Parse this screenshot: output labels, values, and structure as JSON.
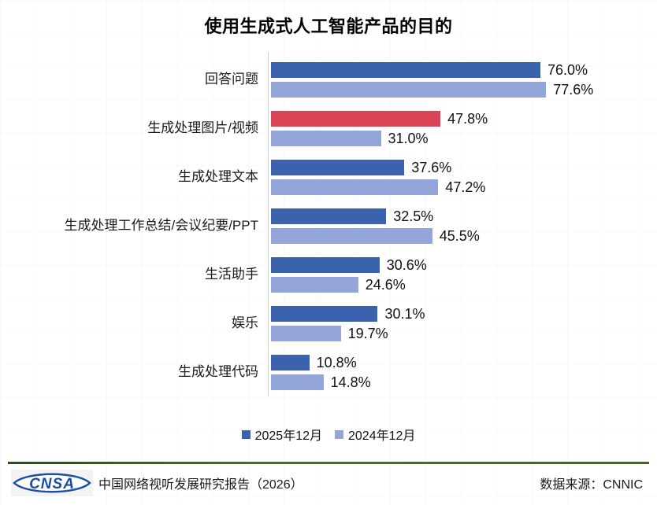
{
  "title": "使用生成式人工智能产品的目的",
  "chart_data": {
    "type": "bar",
    "orientation": "horizontal",
    "categories": [
      "回答问题",
      "生成处理图片/视频",
      "生成处理文本",
      "生成处理工作总结/会议纪要/PPT",
      "生活助手",
      "娱乐",
      "生成处理代码"
    ],
    "series": [
      {
        "name": "2025年12月",
        "color": "#3b63ad",
        "values": [
          76.0,
          47.8,
          37.6,
          32.5,
          30.6,
          30.1,
          10.8
        ]
      },
      {
        "name": "2024年12月",
        "color": "#94a6d9",
        "values": [
          77.6,
          31.0,
          47.2,
          45.5,
          24.6,
          19.7,
          14.8
        ]
      }
    ],
    "highlight": {
      "series_index": 0,
      "category_index": 1,
      "color": "#db4356"
    },
    "value_suffix": "%",
    "value_decimals": 1,
    "xlim": [
      0,
      100
    ],
    "grid": "faint",
    "legend_position": "bottom"
  },
  "legend": [
    {
      "label": "2025年12月",
      "color": "#3b63ad"
    },
    {
      "label": "2024年12月",
      "color": "#94a6d9"
    }
  ],
  "footer": {
    "logo_text": "CNSA",
    "report": "中国网络视听发展研究报告（2026）",
    "source": "数据来源：CNNIC"
  },
  "colors": {
    "series_2025": "#3b63ad",
    "series_2024": "#94a6d9",
    "highlight_red": "#db4356",
    "axis_line": "#c9cdd4",
    "footer_rule_green": "#43652a",
    "logo_blue": "#1c4fa1",
    "title_text": "#000000"
  }
}
